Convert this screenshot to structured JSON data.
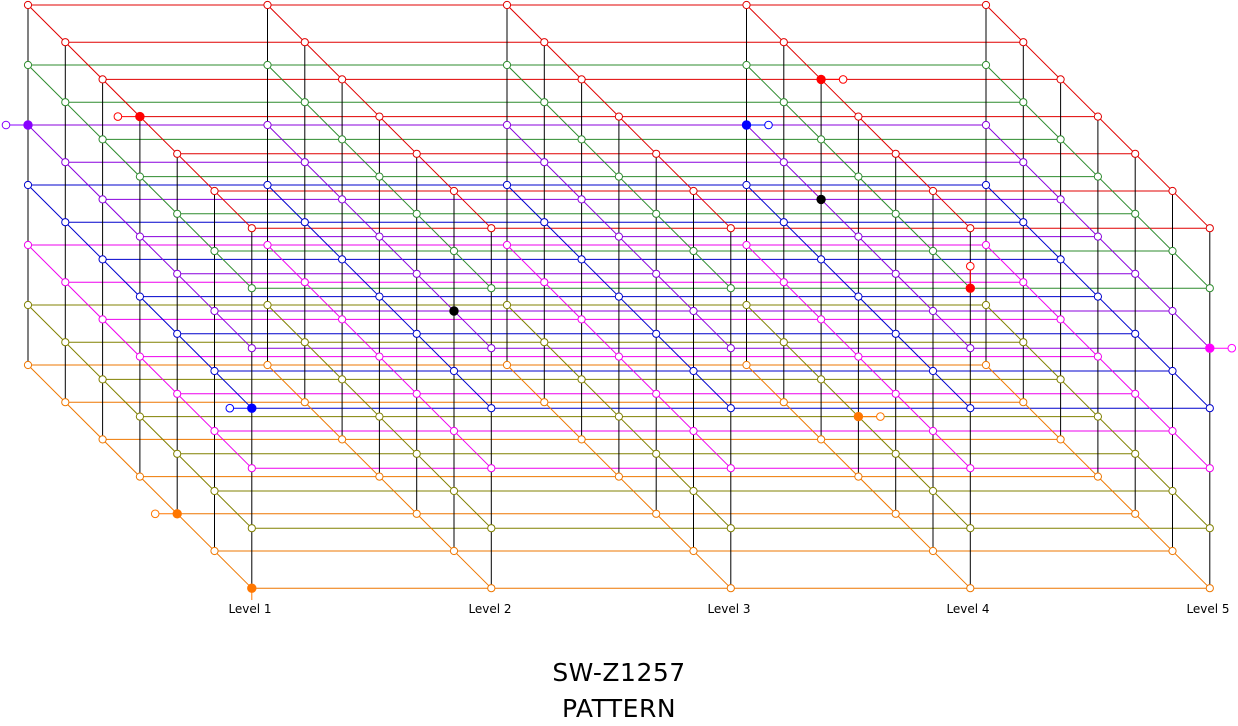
{
  "title": "SW-Z1257",
  "subtitle": "PATTERN",
  "level_labels": [
    "Level 1",
    "Level 2",
    "Level 3",
    "Level 4",
    "Level 5"
  ],
  "lattice": {
    "levels": 5,
    "rows": 7,
    "depth": 7,
    "row_colors": [
      "#e00000",
      "#2e8b2e",
      "#8800dd",
      "#0000cc",
      "#ee00ee",
      "#808000",
      "#ee7700"
    ],
    "vertical_color": "#000000"
  },
  "markers": [
    {
      "level": 1,
      "row": 2,
      "depth": 0,
      "color": "#8800ff",
      "stub": "left"
    },
    {
      "level": 1,
      "row": 0,
      "depth": 3,
      "color": "#ff0000",
      "stub": "left"
    },
    {
      "level": 1,
      "row": 3,
      "depth": 6,
      "color": "#0000ff",
      "stub": "left"
    },
    {
      "level": 1,
      "row": 6,
      "depth": 4,
      "color": "#ff7700",
      "stub": "left"
    },
    {
      "level": 1,
      "row": 6,
      "depth": 6,
      "color": "#ff7700",
      "stub": "down"
    },
    {
      "level": 2,
      "row": 2,
      "depth": 5,
      "color": "#000000",
      "stub": "none"
    },
    {
      "level": 4,
      "row": 2,
      "depth": 2,
      "color": "#000000",
      "stub": "none"
    },
    {
      "level": 4,
      "row": 0,
      "depth": 2,
      "color": "#ff0000",
      "stub": "right"
    },
    {
      "level": 4,
      "row": 2,
      "depth": 0,
      "color": "#0000ff",
      "stub": "right"
    },
    {
      "level": 4,
      "row": 1,
      "depth": 6,
      "color": "#ff0000",
      "stub": "up"
    },
    {
      "level": 4,
      "row": 5,
      "depth": 3,
      "color": "#ff7700",
      "stub": "right"
    },
    {
      "level": 5,
      "row": 2,
      "depth": 6,
      "color": "#ff00ff",
      "stub": "right"
    }
  ]
}
